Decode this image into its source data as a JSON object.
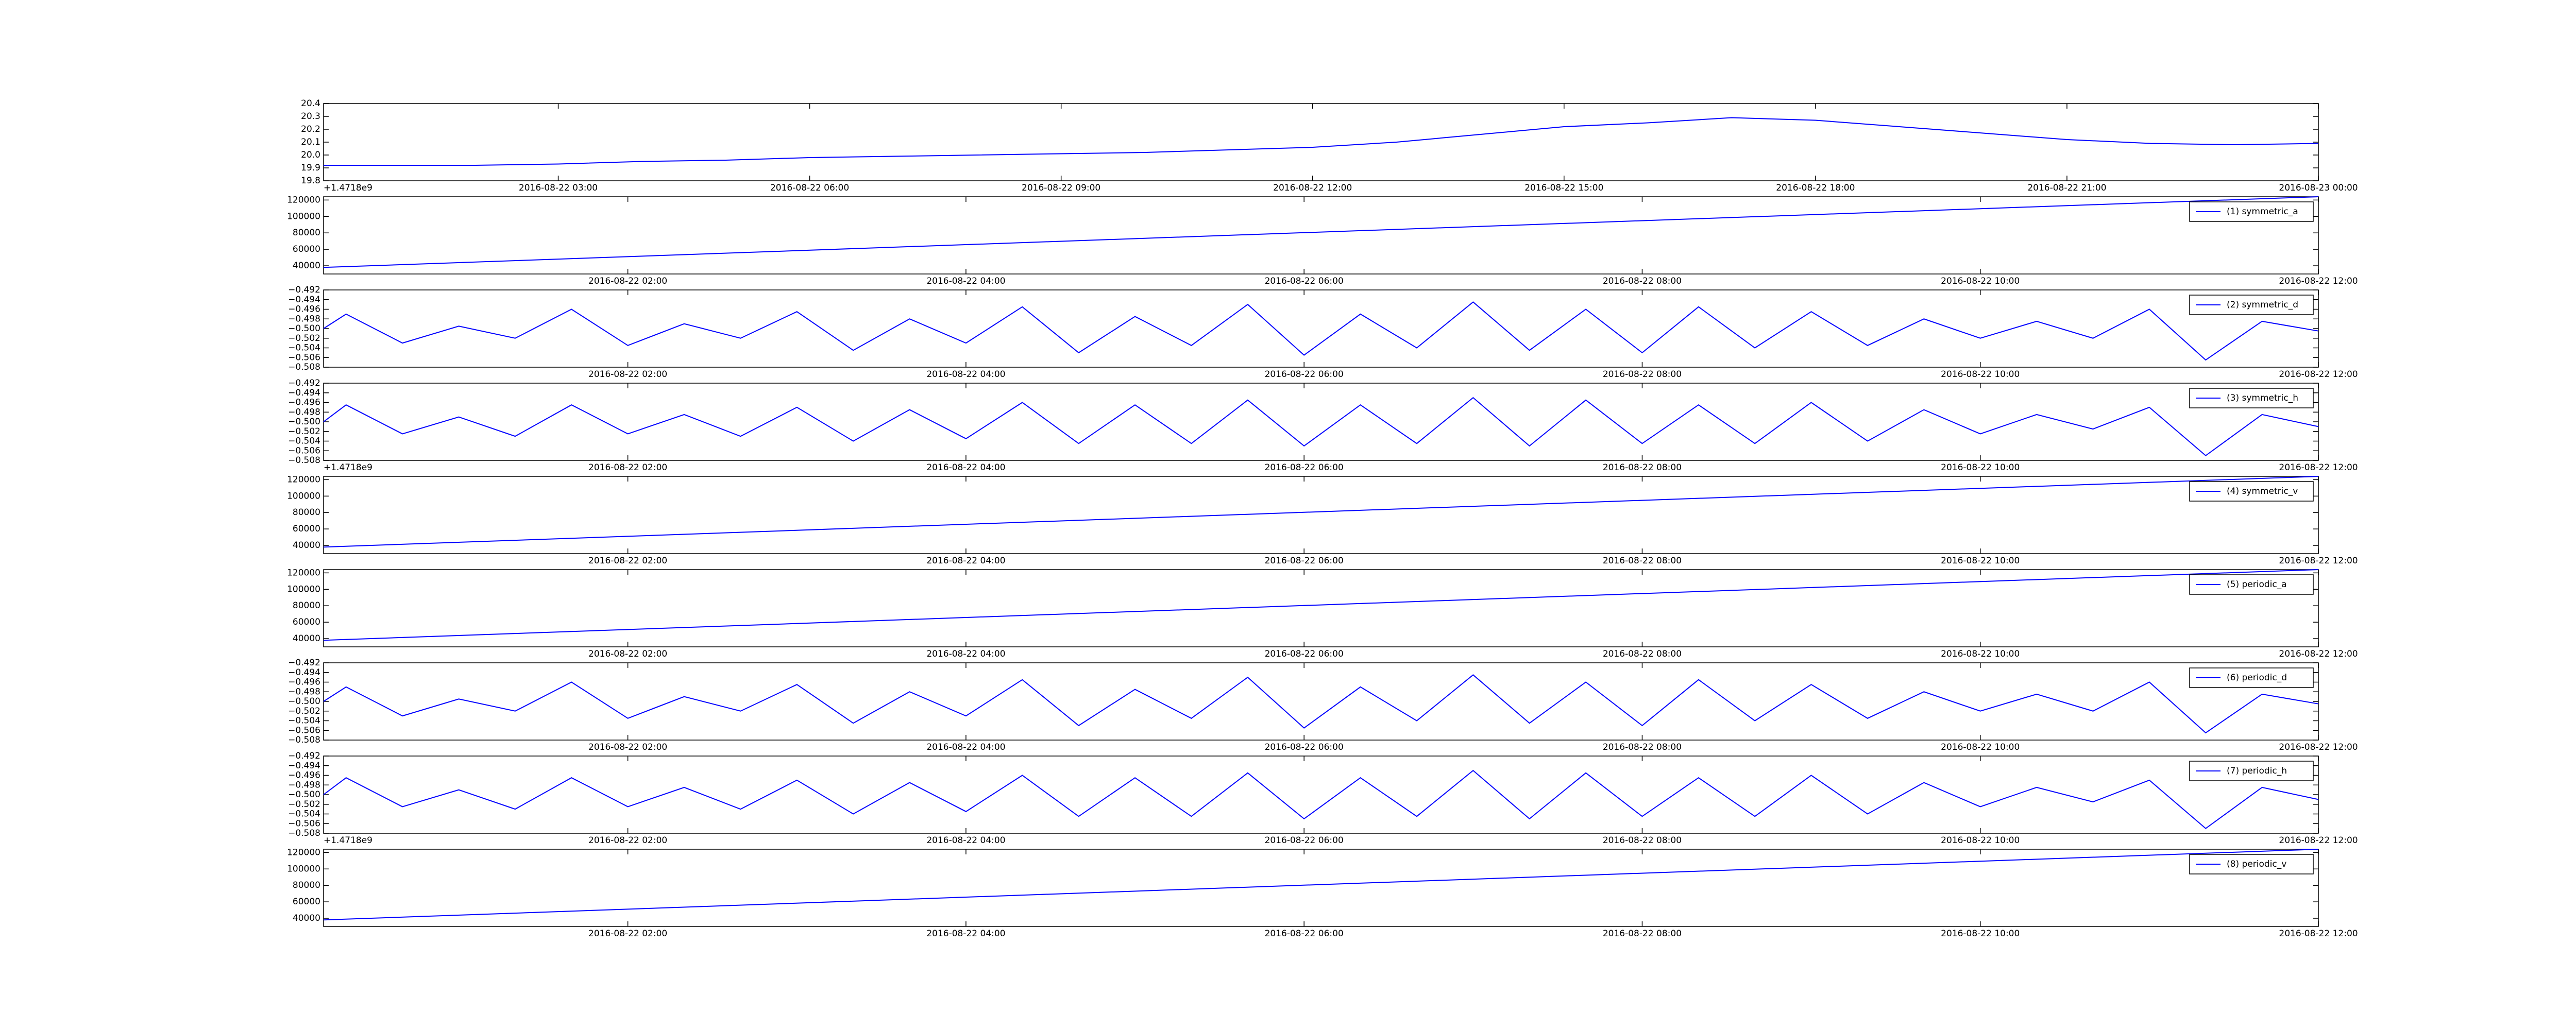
{
  "chart_data": [
    {
      "type": "line",
      "offset_text": "+1.4718e9",
      "x": [
        "2016-08-22 00:12",
        "2016-08-22 01:00",
        "2016-08-22 02:00",
        "2016-08-22 03:00",
        "2016-08-22 04:00",
        "2016-08-22 05:00",
        "2016-08-22 06:00",
        "2016-08-22 07:00",
        "2016-08-22 08:00",
        "2016-08-22 09:00",
        "2016-08-22 10:00",
        "2016-08-22 11:00",
        "2016-08-22 12:00",
        "2016-08-22 13:00",
        "2016-08-22 14:00",
        "2016-08-22 15:00",
        "2016-08-22 16:00",
        "2016-08-22 17:00",
        "2016-08-22 18:00",
        "2016-08-22 19:00",
        "2016-08-22 20:00",
        "2016-08-22 21:00",
        "2016-08-22 22:00",
        "2016-08-22 23:00",
        "2016-08-23 00:00"
      ],
      "series": [
        {
          "color": "#0000ff",
          "values": [
            19.92,
            19.92,
            19.92,
            19.93,
            19.95,
            19.96,
            19.98,
            19.99,
            20.0,
            20.01,
            20.02,
            20.04,
            20.06,
            20.1,
            20.16,
            20.22,
            20.25,
            20.29,
            20.27,
            20.22,
            20.17,
            20.12,
            20.09,
            20.08,
            20.09
          ]
        }
      ],
      "xlim": [
        "2016-08-22 00:12",
        "2016-08-23 00:00"
      ],
      "xticks": [
        "2016-08-22 03:00",
        "2016-08-22 06:00",
        "2016-08-22 09:00",
        "2016-08-22 12:00",
        "2016-08-22 15:00",
        "2016-08-22 18:00",
        "2016-08-22 21:00",
        "2016-08-23 00:00"
      ],
      "ylim": [
        19.8,
        20.4
      ],
      "yticks": [
        19.8,
        19.9,
        {
          "value": 20,
          "label": "20.0"
        },
        20.1,
        20.2,
        20.3,
        20.4
      ]
    },
    {
      "type": "line",
      "legend": "upper right",
      "x": [
        "2016-08-22 00:12",
        "2016-08-22 12:00"
      ],
      "series": [
        {
          "name": "(1) symmetric_a",
          "color": "#0000ff",
          "values": [
            38000,
            124000
          ]
        }
      ],
      "xlim": [
        "2016-08-22 00:12",
        "2016-08-22 12:00"
      ],
      "xticks": [
        "2016-08-22 02:00",
        "2016-08-22 04:00",
        "2016-08-22 06:00",
        "2016-08-22 08:00",
        "2016-08-22 10:00",
        "2016-08-22 12:00"
      ],
      "ylim": [
        30000,
        124000
      ],
      "yticks": [
        40000,
        60000,
        80000,
        100000,
        120000
      ]
    },
    {
      "type": "line",
      "legend": "upper right",
      "x": [
        "2016-08-22 00:12",
        "2016-08-22 00:20",
        "2016-08-22 00:40",
        "2016-08-22 01:00",
        "2016-08-22 01:20",
        "2016-08-22 01:40",
        "2016-08-22 02:00",
        "2016-08-22 02:20",
        "2016-08-22 02:40",
        "2016-08-22 03:00",
        "2016-08-22 03:20",
        "2016-08-22 03:40",
        "2016-08-22 04:00",
        "2016-08-22 04:20",
        "2016-08-22 04:40",
        "2016-08-22 05:00",
        "2016-08-22 05:20",
        "2016-08-22 05:40",
        "2016-08-22 06:00",
        "2016-08-22 06:20",
        "2016-08-22 06:40",
        "2016-08-22 07:00",
        "2016-08-22 07:20",
        "2016-08-22 07:40",
        "2016-08-22 08:00",
        "2016-08-22 08:20",
        "2016-08-22 08:40",
        "2016-08-22 09:00",
        "2016-08-22 09:20",
        "2016-08-22 09:40",
        "2016-08-22 10:00",
        "2016-08-22 10:20",
        "2016-08-22 10:40",
        "2016-08-22 11:00",
        "2016-08-22 11:20",
        "2016-08-22 11:40",
        "2016-08-22 12:00"
      ],
      "series": [
        {
          "name": "(2) symmetric_d",
          "color": "#0000ff",
          "values": [
            -0.5,
            -0.497,
            -0.503,
            -0.4995,
            -0.502,
            -0.496,
            -0.5035,
            -0.499,
            -0.502,
            -0.4965,
            -0.5045,
            -0.498,
            -0.503,
            -0.4955,
            -0.505,
            -0.4975,
            -0.5035,
            -0.495,
            -0.5055,
            -0.497,
            -0.504,
            -0.4945,
            -0.5045,
            -0.496,
            -0.505,
            -0.4955,
            -0.504,
            -0.4965,
            -0.5035,
            -0.498,
            -0.502,
            -0.4985,
            -0.502,
            -0.496,
            -0.5065,
            -0.4985,
            -0.5005
          ]
        }
      ],
      "xlim": [
        "2016-08-22 00:12",
        "2016-08-22 12:00"
      ],
      "xticks": [
        "2016-08-22 02:00",
        "2016-08-22 04:00",
        "2016-08-22 06:00",
        "2016-08-22 08:00",
        "2016-08-22 10:00",
        "2016-08-22 12:00"
      ],
      "ylim": [
        -0.508,
        -0.492
      ],
      "yticks": [
        {
          "value": -0.508,
          "label": "−0.508"
        },
        {
          "value": -0.506,
          "label": "−0.506"
        },
        {
          "value": -0.504,
          "label": "−0.504"
        },
        {
          "value": -0.502,
          "label": "−0.502"
        },
        {
          "value": -0.5,
          "label": "−0.500"
        },
        {
          "value": -0.498,
          "label": "−0.498"
        },
        {
          "value": -0.496,
          "label": "−0.496"
        },
        {
          "value": -0.494,
          "label": "−0.494"
        },
        {
          "value": -0.492,
          "label": "−0.492"
        }
      ]
    },
    {
      "type": "line",
      "legend": "upper right",
      "offset_text": "+1.4718e9",
      "x": [
        "2016-08-22 00:12",
        "2016-08-22 00:20",
        "2016-08-22 00:40",
        "2016-08-22 01:00",
        "2016-08-22 01:20",
        "2016-08-22 01:40",
        "2016-08-22 02:00",
        "2016-08-22 02:20",
        "2016-08-22 02:40",
        "2016-08-22 03:00",
        "2016-08-22 03:20",
        "2016-08-22 03:40",
        "2016-08-22 04:00",
        "2016-08-22 04:20",
        "2016-08-22 04:40",
        "2016-08-22 05:00",
        "2016-08-22 05:20",
        "2016-08-22 05:40",
        "2016-08-22 06:00",
        "2016-08-22 06:20",
        "2016-08-22 06:40",
        "2016-08-22 07:00",
        "2016-08-22 07:20",
        "2016-08-22 07:40",
        "2016-08-22 08:00",
        "2016-08-22 08:20",
        "2016-08-22 08:40",
        "2016-08-22 09:00",
        "2016-08-22 09:20",
        "2016-08-22 09:40",
        "2016-08-22 10:00",
        "2016-08-22 10:20",
        "2016-08-22 10:40",
        "2016-08-22 11:00",
        "2016-08-22 11:20",
        "2016-08-22 11:40",
        "2016-08-22 12:00"
      ],
      "series": [
        {
          "name": "(3) symmetric_h",
          "color": "#0000ff",
          "values": [
            -0.5,
            -0.4965,
            -0.5025,
            -0.499,
            -0.503,
            -0.4965,
            -0.5025,
            -0.4985,
            -0.503,
            -0.497,
            -0.504,
            -0.4975,
            -0.5035,
            -0.496,
            -0.5045,
            -0.4965,
            -0.5045,
            -0.4955,
            -0.505,
            -0.4965,
            -0.5045,
            -0.495,
            -0.505,
            -0.4955,
            -0.5045,
            -0.4965,
            -0.5045,
            -0.496,
            -0.504,
            -0.4975,
            -0.5025,
            -0.4985,
            -0.5015,
            -0.497,
            -0.507,
            -0.4985,
            -0.501
          ]
        }
      ],
      "xlim": [
        "2016-08-22 00:12",
        "2016-08-22 12:00"
      ],
      "xticks": [
        "2016-08-22 02:00",
        "2016-08-22 04:00",
        "2016-08-22 06:00",
        "2016-08-22 08:00",
        "2016-08-22 10:00",
        "2016-08-22 12:00"
      ],
      "ylim": [
        -0.508,
        -0.492
      ],
      "yticks": [
        {
          "value": -0.508,
          "label": "−0.508"
        },
        {
          "value": -0.506,
          "label": "−0.506"
        },
        {
          "value": -0.504,
          "label": "−0.504"
        },
        {
          "value": -0.502,
          "label": "−0.502"
        },
        {
          "value": -0.5,
          "label": "−0.500"
        },
        {
          "value": -0.498,
          "label": "−0.498"
        },
        {
          "value": -0.496,
          "label": "−0.496"
        },
        {
          "value": -0.494,
          "label": "−0.494"
        },
        {
          "value": -0.492,
          "label": "−0.492"
        }
      ]
    },
    {
      "type": "line",
      "legend": "upper right",
      "x": [
        "2016-08-22 00:12",
        "2016-08-22 12:00"
      ],
      "series": [
        {
          "name": "(4) symmetric_v",
          "color": "#0000ff",
          "values": [
            38000,
            124000
          ]
        }
      ],
      "xlim": [
        "2016-08-22 00:12",
        "2016-08-22 12:00"
      ],
      "xticks": [
        "2016-08-22 02:00",
        "2016-08-22 04:00",
        "2016-08-22 06:00",
        "2016-08-22 08:00",
        "2016-08-22 10:00",
        "2016-08-22 12:00"
      ],
      "ylim": [
        30000,
        124000
      ],
      "yticks": [
        40000,
        60000,
        80000,
        100000,
        120000
      ]
    },
    {
      "type": "line",
      "legend": "upper right",
      "x": [
        "2016-08-22 00:12",
        "2016-08-22 12:00"
      ],
      "series": [
        {
          "name": "(5) periodic_a",
          "color": "#0000ff",
          "values": [
            38000,
            124000
          ]
        }
      ],
      "xlim": [
        "2016-08-22 00:12",
        "2016-08-22 12:00"
      ],
      "xticks": [
        "2016-08-22 02:00",
        "2016-08-22 04:00",
        "2016-08-22 06:00",
        "2016-08-22 08:00",
        "2016-08-22 10:00",
        "2016-08-22 12:00"
      ],
      "ylim": [
        30000,
        124000
      ],
      "yticks": [
        40000,
        60000,
        80000,
        100000,
        120000
      ]
    },
    {
      "type": "line",
      "legend": "upper right",
      "x": [
        "2016-08-22 00:12",
        "2016-08-22 00:20",
        "2016-08-22 00:40",
        "2016-08-22 01:00",
        "2016-08-22 01:20",
        "2016-08-22 01:40",
        "2016-08-22 02:00",
        "2016-08-22 02:20",
        "2016-08-22 02:40",
        "2016-08-22 03:00",
        "2016-08-22 03:20",
        "2016-08-22 03:40",
        "2016-08-22 04:00",
        "2016-08-22 04:20",
        "2016-08-22 04:40",
        "2016-08-22 05:00",
        "2016-08-22 05:20",
        "2016-08-22 05:40",
        "2016-08-22 06:00",
        "2016-08-22 06:20",
        "2016-08-22 06:40",
        "2016-08-22 07:00",
        "2016-08-22 07:20",
        "2016-08-22 07:40",
        "2016-08-22 08:00",
        "2016-08-22 08:20",
        "2016-08-22 08:40",
        "2016-08-22 09:00",
        "2016-08-22 09:20",
        "2016-08-22 09:40",
        "2016-08-22 10:00",
        "2016-08-22 10:20",
        "2016-08-22 10:40",
        "2016-08-22 11:00",
        "2016-08-22 11:20",
        "2016-08-22 11:40",
        "2016-08-22 12:00"
      ],
      "series": [
        {
          "name": "(6) periodic_d",
          "color": "#0000ff",
          "values": [
            -0.5,
            -0.497,
            -0.503,
            -0.4995,
            -0.502,
            -0.496,
            -0.5035,
            -0.499,
            -0.502,
            -0.4965,
            -0.5045,
            -0.498,
            -0.503,
            -0.4955,
            -0.505,
            -0.4975,
            -0.5035,
            -0.495,
            -0.5055,
            -0.497,
            -0.504,
            -0.4945,
            -0.5045,
            -0.496,
            -0.505,
            -0.4955,
            -0.504,
            -0.4965,
            -0.5035,
            -0.498,
            -0.502,
            -0.4985,
            -0.502,
            -0.496,
            -0.5065,
            -0.4985,
            -0.5005
          ]
        }
      ],
      "xlim": [
        "2016-08-22 00:12",
        "2016-08-22 12:00"
      ],
      "xticks": [
        "2016-08-22 02:00",
        "2016-08-22 04:00",
        "2016-08-22 06:00",
        "2016-08-22 08:00",
        "2016-08-22 10:00",
        "2016-08-22 12:00"
      ],
      "ylim": [
        -0.508,
        -0.492
      ],
      "yticks": [
        {
          "value": -0.508,
          "label": "−0.508"
        },
        {
          "value": -0.506,
          "label": "−0.506"
        },
        {
          "value": -0.504,
          "label": "−0.504"
        },
        {
          "value": -0.502,
          "label": "−0.502"
        },
        {
          "value": -0.5,
          "label": "−0.500"
        },
        {
          "value": -0.498,
          "label": "−0.498"
        },
        {
          "value": -0.496,
          "label": "−0.496"
        },
        {
          "value": -0.494,
          "label": "−0.494"
        },
        {
          "value": -0.492,
          "label": "−0.492"
        }
      ]
    },
    {
      "type": "line",
      "legend": "upper right",
      "offset_text": "+1.4718e9",
      "x": [
        "2016-08-22 00:12",
        "2016-08-22 00:20",
        "2016-08-22 00:40",
        "2016-08-22 01:00",
        "2016-08-22 01:20",
        "2016-08-22 01:40",
        "2016-08-22 02:00",
        "2016-08-22 02:20",
        "2016-08-22 02:40",
        "2016-08-22 03:00",
        "2016-08-22 03:20",
        "2016-08-22 03:40",
        "2016-08-22 04:00",
        "2016-08-22 04:20",
        "2016-08-22 04:40",
        "2016-08-22 05:00",
        "2016-08-22 05:20",
        "2016-08-22 05:40",
        "2016-08-22 06:00",
        "2016-08-22 06:20",
        "2016-08-22 06:40",
        "2016-08-22 07:00",
        "2016-08-22 07:20",
        "2016-08-22 07:40",
        "2016-08-22 08:00",
        "2016-08-22 08:20",
        "2016-08-22 08:40",
        "2016-08-22 09:00",
        "2016-08-22 09:20",
        "2016-08-22 09:40",
        "2016-08-22 10:00",
        "2016-08-22 10:20",
        "2016-08-22 10:40",
        "2016-08-22 11:00",
        "2016-08-22 11:20",
        "2016-08-22 11:40",
        "2016-08-22 12:00"
      ],
      "series": [
        {
          "name": "(7) periodic_h",
          "color": "#0000ff",
          "values": [
            -0.5,
            -0.4965,
            -0.5025,
            -0.499,
            -0.503,
            -0.4965,
            -0.5025,
            -0.4985,
            -0.503,
            -0.497,
            -0.504,
            -0.4975,
            -0.5035,
            -0.496,
            -0.5045,
            -0.4965,
            -0.5045,
            -0.4955,
            -0.505,
            -0.4965,
            -0.5045,
            -0.495,
            -0.505,
            -0.4955,
            -0.5045,
            -0.4965,
            -0.5045,
            -0.496,
            -0.504,
            -0.4975,
            -0.5025,
            -0.4985,
            -0.5015,
            -0.497,
            -0.507,
            -0.4985,
            -0.501
          ]
        }
      ],
      "xlim": [
        "2016-08-22 00:12",
        "2016-08-22 12:00"
      ],
      "xticks": [
        "2016-08-22 02:00",
        "2016-08-22 04:00",
        "2016-08-22 06:00",
        "2016-08-22 08:00",
        "2016-08-22 10:00",
        "2016-08-22 12:00"
      ],
      "ylim": [
        -0.508,
        -0.492
      ],
      "yticks": [
        {
          "value": -0.508,
          "label": "−0.508"
        },
        {
          "value": -0.506,
          "label": "−0.506"
        },
        {
          "value": -0.504,
          "label": "−0.504"
        },
        {
          "value": -0.502,
          "label": "−0.502"
        },
        {
          "value": -0.5,
          "label": "−0.500"
        },
        {
          "value": -0.498,
          "label": "−0.498"
        },
        {
          "value": -0.496,
          "label": "−0.496"
        },
        {
          "value": -0.494,
          "label": "−0.494"
        },
        {
          "value": -0.492,
          "label": "−0.492"
        }
      ]
    },
    {
      "type": "line",
      "legend": "upper right",
      "x": [
        "2016-08-22 00:12",
        "2016-08-22 12:00"
      ],
      "series": [
        {
          "name": "(8) periodic_v",
          "color": "#0000ff",
          "values": [
            38000,
            124000
          ]
        }
      ],
      "xlim": [
        "2016-08-22 00:12",
        "2016-08-22 12:00"
      ],
      "xticks": [
        "2016-08-22 02:00",
        "2016-08-22 04:00",
        "2016-08-22 06:00",
        "2016-08-22 08:00",
        "2016-08-22 10:00",
        "2016-08-22 12:00"
      ],
      "ylim": [
        30000,
        124000
      ],
      "yticks": [
        40000,
        60000,
        80000,
        100000,
        120000
      ]
    }
  ]
}
